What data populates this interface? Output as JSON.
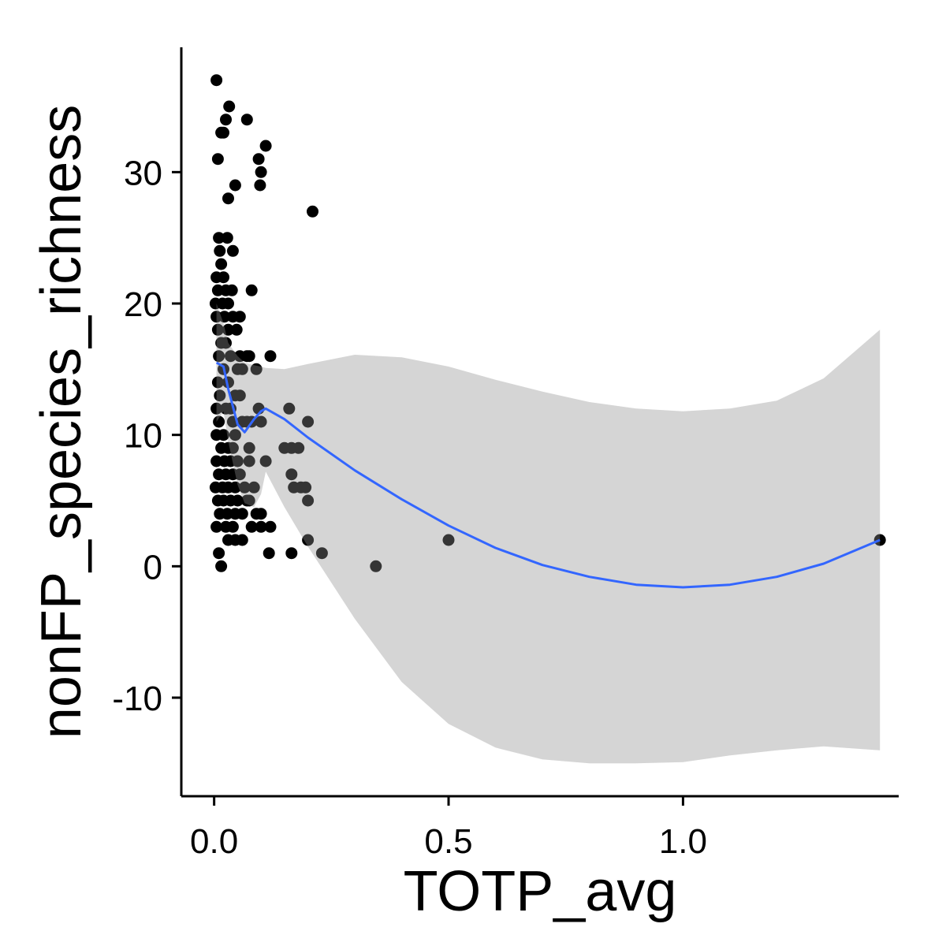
{
  "chart_data": {
    "type": "scatter",
    "title": "",
    "xlabel": "TOTP_avg",
    "ylabel": "nonFP_species_richness",
    "xlim": [
      -0.07,
      1.46
    ],
    "ylim": [
      -17.5,
      39.5
    ],
    "x_ticks": [
      0.0,
      0.5,
      1.0
    ],
    "x_tick_labels": [
      "0.0",
      "0.5",
      "1.0"
    ],
    "y_ticks": [
      -10,
      0,
      10,
      20,
      30
    ],
    "y_tick_labels": [
      "-10",
      "0",
      "10",
      "20",
      "30"
    ],
    "grid": false,
    "legend": "none",
    "colors": {
      "points": "#000000",
      "smooth_line": "#3366ff",
      "confidence_band": "#d3d3d3",
      "axis": "#000000"
    },
    "points": [
      {
        "x": 0.005,
        "y": 37
      },
      {
        "x": 0.008,
        "y": 31
      },
      {
        "x": 0.015,
        "y": 33
      },
      {
        "x": 0.02,
        "y": 33
      },
      {
        "x": 0.025,
        "y": 34
      },
      {
        "x": 0.032,
        "y": 35
      },
      {
        "x": 0.07,
        "y": 34
      },
      {
        "x": 0.045,
        "y": 29
      },
      {
        "x": 0.03,
        "y": 28
      },
      {
        "x": 0.11,
        "y": 32
      },
      {
        "x": 0.095,
        "y": 31
      },
      {
        "x": 0.1,
        "y": 30
      },
      {
        "x": 0.098,
        "y": 29
      },
      {
        "x": 0.21,
        "y": 27
      },
      {
        "x": 0.01,
        "y": 25
      },
      {
        "x": 0.028,
        "y": 25
      },
      {
        "x": 0.012,
        "y": 24
      },
      {
        "x": 0.04,
        "y": 24
      },
      {
        "x": 0.015,
        "y": 23
      },
      {
        "x": 0.005,
        "y": 22
      },
      {
        "x": 0.02,
        "y": 22
      },
      {
        "x": 0.008,
        "y": 21
      },
      {
        "x": 0.025,
        "y": 21
      },
      {
        "x": 0.038,
        "y": 21
      },
      {
        "x": 0.08,
        "y": 21
      },
      {
        "x": 0.003,
        "y": 20
      },
      {
        "x": 0.018,
        "y": 20
      },
      {
        "x": 0.03,
        "y": 20
      },
      {
        "x": 0.005,
        "y": 19
      },
      {
        "x": 0.022,
        "y": 19
      },
      {
        "x": 0.04,
        "y": 19
      },
      {
        "x": 0.055,
        "y": 19
      },
      {
        "x": 0.008,
        "y": 18
      },
      {
        "x": 0.03,
        "y": 18
      },
      {
        "x": 0.048,
        "y": 18
      },
      {
        "x": 0.015,
        "y": 17
      },
      {
        "x": 0.025,
        "y": 17
      },
      {
        "x": 0.01,
        "y": 16
      },
      {
        "x": 0.035,
        "y": 16
      },
      {
        "x": 0.055,
        "y": 16
      },
      {
        "x": 0.07,
        "y": 16
      },
      {
        "x": 0.075,
        "y": 16
      },
      {
        "x": 0.12,
        "y": 16
      },
      {
        "x": 0.02,
        "y": 15
      },
      {
        "x": 0.05,
        "y": 15
      },
      {
        "x": 0.06,
        "y": 15
      },
      {
        "x": 0.09,
        "y": 15
      },
      {
        "x": 0.008,
        "y": 14
      },
      {
        "x": 0.03,
        "y": 14
      },
      {
        "x": 0.012,
        "y": 13
      },
      {
        "x": 0.045,
        "y": 13
      },
      {
        "x": 0.055,
        "y": 13
      },
      {
        "x": 0.005,
        "y": 12
      },
      {
        "x": 0.025,
        "y": 12
      },
      {
        "x": 0.035,
        "y": 12
      },
      {
        "x": 0.095,
        "y": 12
      },
      {
        "x": 0.16,
        "y": 12
      },
      {
        "x": 0.01,
        "y": 11
      },
      {
        "x": 0.04,
        "y": 11
      },
      {
        "x": 0.06,
        "y": 11
      },
      {
        "x": 0.07,
        "y": 11
      },
      {
        "x": 0.08,
        "y": 11
      },
      {
        "x": 0.1,
        "y": 11
      },
      {
        "x": 0.2,
        "y": 11
      },
      {
        "x": 0.005,
        "y": 10
      },
      {
        "x": 0.02,
        "y": 10
      },
      {
        "x": 0.045,
        "y": 10
      },
      {
        "x": 0.015,
        "y": 9
      },
      {
        "x": 0.03,
        "y": 9
      },
      {
        "x": 0.04,
        "y": 9
      },
      {
        "x": 0.075,
        "y": 9
      },
      {
        "x": 0.15,
        "y": 9
      },
      {
        "x": 0.165,
        "y": 9
      },
      {
        "x": 0.18,
        "y": 9
      },
      {
        "x": 0.005,
        "y": 8
      },
      {
        "x": 0.022,
        "y": 8
      },
      {
        "x": 0.035,
        "y": 8
      },
      {
        "x": 0.05,
        "y": 8
      },
      {
        "x": 0.075,
        "y": 8
      },
      {
        "x": 0.11,
        "y": 8
      },
      {
        "x": 0.01,
        "y": 7
      },
      {
        "x": 0.025,
        "y": 7
      },
      {
        "x": 0.04,
        "y": 7
      },
      {
        "x": 0.055,
        "y": 7
      },
      {
        "x": 0.165,
        "y": 7
      },
      {
        "x": 0.003,
        "y": 6
      },
      {
        "x": 0.018,
        "y": 6
      },
      {
        "x": 0.03,
        "y": 6
      },
      {
        "x": 0.045,
        "y": 6
      },
      {
        "x": 0.065,
        "y": 6
      },
      {
        "x": 0.085,
        "y": 6
      },
      {
        "x": 0.17,
        "y": 6
      },
      {
        "x": 0.185,
        "y": 6
      },
      {
        "x": 0.195,
        "y": 6
      },
      {
        "x": 0.008,
        "y": 5
      },
      {
        "x": 0.02,
        "y": 5
      },
      {
        "x": 0.035,
        "y": 5
      },
      {
        "x": 0.05,
        "y": 5
      },
      {
        "x": 0.07,
        "y": 5
      },
      {
        "x": 0.075,
        "y": 5
      },
      {
        "x": 0.2,
        "y": 5
      },
      {
        "x": 0.012,
        "y": 4
      },
      {
        "x": 0.028,
        "y": 4
      },
      {
        "x": 0.045,
        "y": 4
      },
      {
        "x": 0.06,
        "y": 4
      },
      {
        "x": 0.09,
        "y": 4
      },
      {
        "x": 0.1,
        "y": 4
      },
      {
        "x": 0.005,
        "y": 3
      },
      {
        "x": 0.025,
        "y": 3
      },
      {
        "x": 0.04,
        "y": 3
      },
      {
        "x": 0.08,
        "y": 3
      },
      {
        "x": 0.1,
        "y": 3
      },
      {
        "x": 0.12,
        "y": 3
      },
      {
        "x": 0.03,
        "y": 2
      },
      {
        "x": 0.045,
        "y": 2
      },
      {
        "x": 0.06,
        "y": 2
      },
      {
        "x": 0.2,
        "y": 2
      },
      {
        "x": 0.5,
        "y": 2
      },
      {
        "x": 1.42,
        "y": 2
      },
      {
        "x": 0.01,
        "y": 1
      },
      {
        "x": 0.117,
        "y": 1
      },
      {
        "x": 0.165,
        "y": 1
      },
      {
        "x": 0.23,
        "y": 1
      },
      {
        "x": 0.015,
        "y": 0
      },
      {
        "x": 0.345,
        "y": 0
      }
    ],
    "smooth": {
      "x": [
        0.005,
        0.02,
        0.03,
        0.05,
        0.065,
        0.085,
        0.1,
        0.11,
        0.15,
        0.2,
        0.3,
        0.4,
        0.5,
        0.6,
        0.7,
        0.8,
        0.9,
        1.0,
        1.1,
        1.2,
        1.3,
        1.42
      ],
      "y": [
        15.5,
        15.2,
        13.5,
        10.8,
        10.2,
        11.2,
        11.8,
        12.0,
        11.2,
        9.8,
        7.3,
        5.1,
        3.1,
        1.4,
        0.1,
        -0.8,
        -1.4,
        -1.6,
        -1.4,
        -0.8,
        0.2,
        2.0
      ],
      "upper": [
        20.0,
        18.5,
        17.0,
        16.0,
        15.5,
        15.3,
        15.2,
        15.1,
        15.0,
        15.4,
        16.1,
        15.9,
        15.2,
        14.2,
        13.3,
        12.5,
        12.0,
        11.8,
        12.0,
        12.6,
        14.3,
        18.0
      ],
      "lower": [
        11.0,
        11.8,
        9.5,
        6.2,
        4.8,
        4.5,
        5.5,
        7.2,
        4.5,
        1.5,
        -4.0,
        -8.8,
        -12.0,
        -13.8,
        -14.7,
        -15.0,
        -15.0,
        -14.9,
        -14.4,
        -14.0,
        -13.7,
        -14.0
      ]
    }
  }
}
